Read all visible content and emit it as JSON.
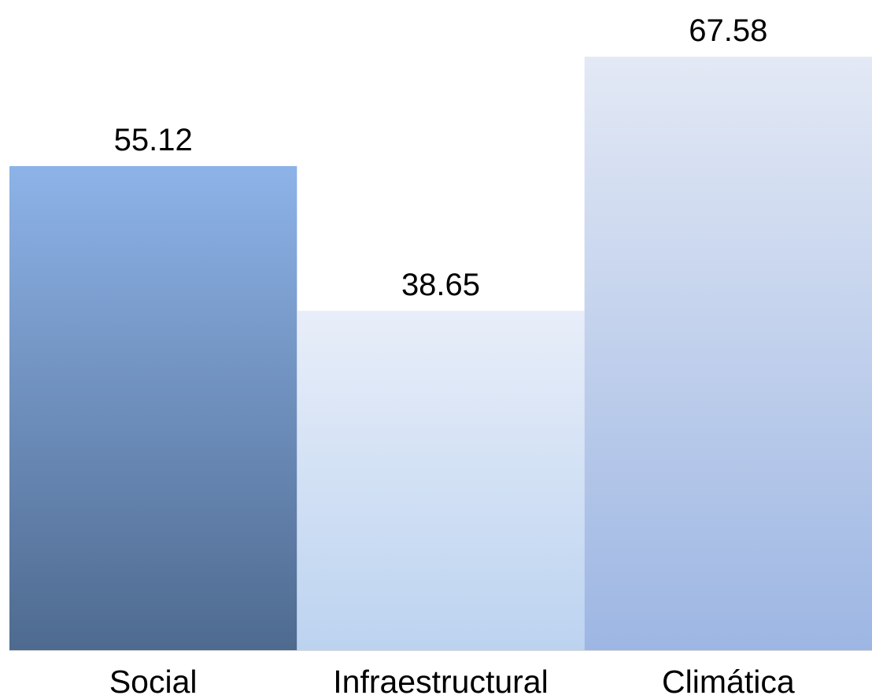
{
  "chart_data": {
    "type": "bar",
    "categories": [
      "Social",
      "Infraestructural",
      "Climática"
    ],
    "values": [
      55.12,
      38.65,
      67.58
    ],
    "value_labels": [
      "55.12",
      "38.65",
      "67.58"
    ],
    "ylim": [
      0,
      70
    ],
    "grid": false,
    "legend": "none",
    "colors": [
      {
        "top": "#8DB3E8",
        "bottom": "#4E6A8F"
      },
      {
        "top": "#E8EEF9",
        "bottom": "#BCD3F0"
      },
      {
        "top": "#E3E9F5",
        "bottom": "#9DB6E3"
      }
    ]
  }
}
